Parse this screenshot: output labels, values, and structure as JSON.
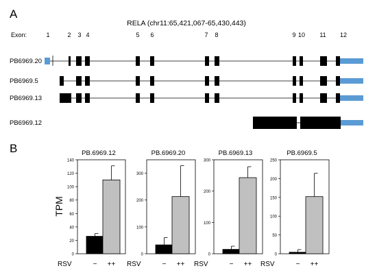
{
  "panel_a": {
    "label": "A",
    "gene_title": "RELA (chr11:65,421,067-65,430,443)",
    "exon_header": "Exon:",
    "exon_numbers": [
      "1",
      "2",
      "3",
      "4",
      "5",
      "6",
      "7",
      "8",
      "9",
      "10",
      "11",
      "12"
    ],
    "isoforms": [
      {
        "name": "PB6969.20"
      },
      {
        "name": "PB6969.5"
      },
      {
        "name": "PB6969.13"
      },
      {
        "name": "PB6969.12"
      }
    ],
    "colors": {
      "exon": "#000000",
      "utr": "#5b9bd5",
      "intron": "#000000"
    }
  },
  "panel_b": {
    "label": "B",
    "ylabel": "TPM",
    "condition_label": "RSV",
    "group_labels": [
      "−",
      "++"
    ],
    "colors": {
      "control": "#000000",
      "treated": "#c0c0c0"
    }
  },
  "chart_data": [
    {
      "type": "bar",
      "title": "PB.6969.12",
      "categories": [
        "−",
        "++"
      ],
      "values": [
        26,
        110
      ],
      "errors": [
        4,
        21
      ],
      "ylim": [
        0,
        140
      ],
      "yticks": [
        0,
        20,
        40,
        60,
        80,
        100,
        120,
        140
      ],
      "ylabel": "TPM",
      "xlabel": "RSV"
    },
    {
      "type": "bar",
      "title": "PB.6969.20",
      "categories": [
        "−",
        "++"
      ],
      "values": [
        33,
        213
      ],
      "errors": [
        27,
        115
      ],
      "ylim": [
        0,
        350
      ],
      "yticks": [
        0,
        100,
        200,
        300
      ],
      "ylabel": "",
      "xlabel": "RSV"
    },
    {
      "type": "bar",
      "title": "PB.6969.13",
      "categories": [
        "−",
        "++"
      ],
      "values": [
        14,
        243
      ],
      "errors": [
        10,
        35
      ],
      "ylim": [
        0,
        300
      ],
      "yticks": [
        0,
        100,
        200,
        300
      ],
      "ylabel": "",
      "xlabel": "RSV"
    },
    {
      "type": "bar",
      "title": "PB.6969.5",
      "categories": [
        "−",
        "++"
      ],
      "values": [
        4,
        152
      ],
      "errors": [
        7,
        62
      ],
      "ylim": [
        0,
        250
      ],
      "yticks": [
        0,
        50,
        100,
        150,
        200,
        250
      ],
      "ylabel": "",
      "xlabel": "RSV"
    }
  ]
}
